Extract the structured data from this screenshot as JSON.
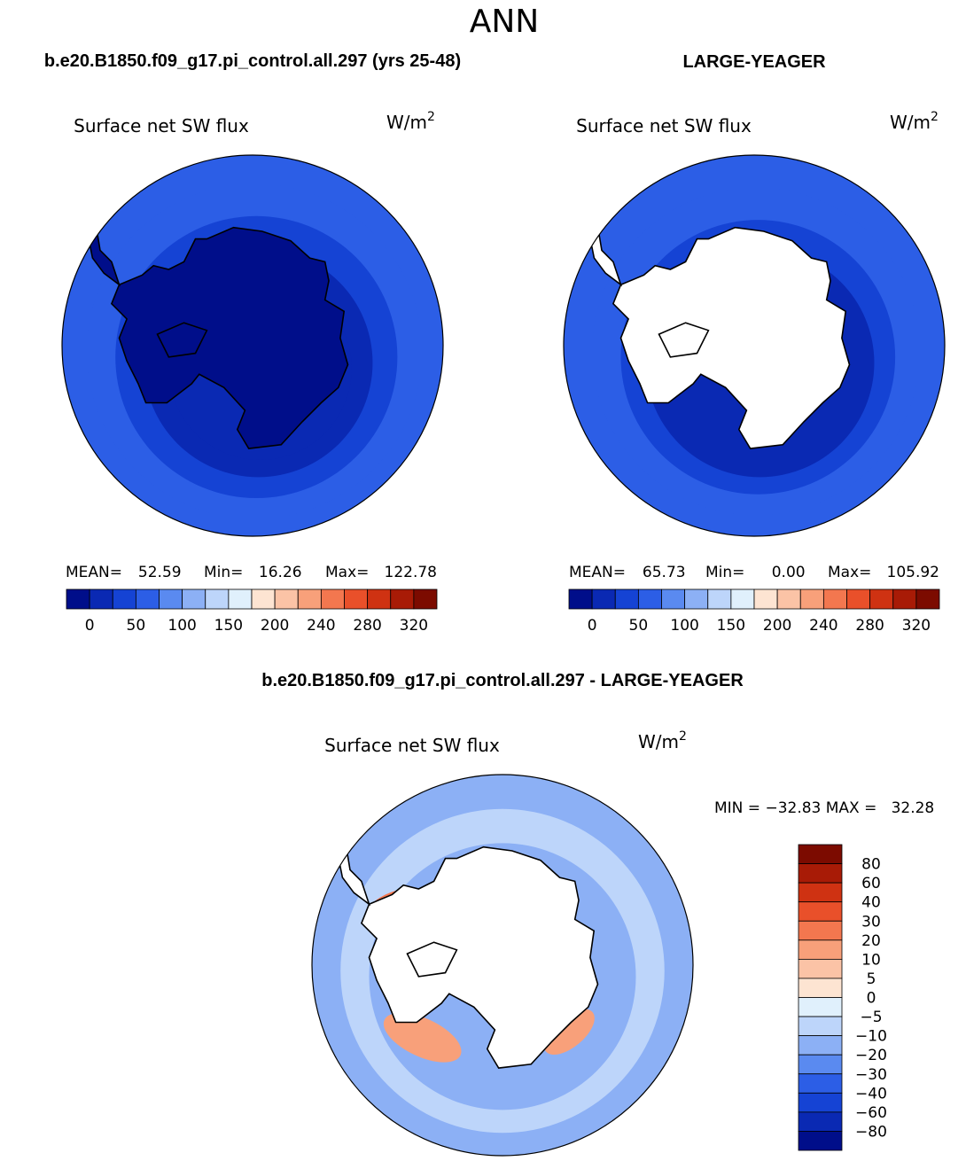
{
  "page_title": "ANN",
  "colors": {
    "land_fill": "#ffffff",
    "coastline": "#000000",
    "text": "#000000"
  },
  "chart_data": [
    {
      "id": "panel-model",
      "type": "heatmap",
      "projection": "south-polar-stereographic",
      "case_title": "b.e20.B1850.f09_g17.pi_control.all.297 (yrs 25-48)",
      "variable": "Surface net SW flux",
      "units_base": "W/m",
      "units_exp": "2",
      "stats": [
        {
          "label": "MEAN=",
          "value": "52.59"
        },
        {
          "label": "Min=",
          "value": "16.26"
        },
        {
          "label": "Max=",
          "value": "122.78"
        }
      ],
      "colorbar": {
        "orientation": "horizontal",
        "tick_labels": [
          "0",
          "50",
          "100",
          "150",
          "200",
          "240",
          "280",
          "320"
        ],
        "colors": [
          "#000e8a",
          "#0a29b3",
          "#1543d4",
          "#2c5ee6",
          "#5a8af0",
          "#8cb0f5",
          "#bdd5fa",
          "#e0f0fc",
          "#fde4d2",
          "#fbc3a6",
          "#f8a07a",
          "#f3774f",
          "#e9502a",
          "#cf3212",
          "#a81b06",
          "#7c0b00"
        ]
      },
      "field_rings": [
        {
          "rho": 1.0,
          "value": 95
        },
        {
          "rho": 0.88,
          "value": 82
        },
        {
          "rho": 0.74,
          "value": 65
        },
        {
          "rho": 0.6,
          "value": 48
        },
        {
          "rho": 0.48,
          "value": 30
        }
      ]
    },
    {
      "id": "panel-obs",
      "type": "heatmap",
      "projection": "south-polar-stereographic",
      "case_title": "LARGE-YEAGER",
      "variable": "Surface net SW flux",
      "units_base": "W/m",
      "units_exp": "2",
      "stats": [
        {
          "label": "MEAN=",
          "value": "65.73"
        },
        {
          "label": "Min=",
          "value": "0.00"
        },
        {
          "label": "Max=",
          "value": "105.92"
        }
      ],
      "colorbar": {
        "orientation": "horizontal",
        "tick_labels": [
          "0",
          "50",
          "100",
          "150",
          "200",
          "240",
          "280",
          "320"
        ],
        "colors": [
          "#000e8a",
          "#0a29b3",
          "#1543d4",
          "#2c5ee6",
          "#5a8af0",
          "#8cb0f5",
          "#bdd5fa",
          "#e0f0fc",
          "#fde4d2",
          "#fbc3a6",
          "#f8a07a",
          "#f3774f",
          "#e9502a",
          "#cf3212",
          "#a81b06",
          "#7c0b00"
        ]
      },
      "field_rings": [
        {
          "rho": 1.0,
          "value": 97
        },
        {
          "rho": 0.86,
          "value": 80
        },
        {
          "rho": 0.72,
          "value": 62
        },
        {
          "rho": 0.6,
          "value": 45
        }
      ]
    },
    {
      "id": "panel-diff",
      "type": "heatmap",
      "projection": "south-polar-stereographic",
      "case_title": "b.e20.B1850.f09_g17.pi_control.all.297 - LARGE-YEAGER",
      "variable": "Surface net SW flux",
      "units_base": "W/m",
      "units_exp": "2",
      "stats_text": "MIN = −32.83 MAX =   32.28",
      "colorbar": {
        "orientation": "vertical",
        "tick_labels": [
          "80",
          "60",
          "40",
          "30",
          "20",
          "10",
          "5",
          "0",
          "−5",
          "−10",
          "−20",
          "−30",
          "−40",
          "−60",
          "−80"
        ],
        "colors": [
          "#7c0b00",
          "#a81b06",
          "#cf3212",
          "#e9502a",
          "#f3774f",
          "#f8a07a",
          "#fbc3a6",
          "#fde4d2",
          "#e0f0fc",
          "#bdd5fa",
          "#8cb0f5",
          "#5a8af0",
          "#2c5ee6",
          "#1543d4",
          "#0a29b3",
          "#000e8a"
        ]
      },
      "field_rings": [
        {
          "rho": 1.0,
          "value": -12
        },
        {
          "rho": 0.85,
          "value": -7
        },
        {
          "rho": 0.7,
          "value": -15
        }
      ],
      "anomalies": [
        {
          "region": "amundsen-sea",
          "value": 25
        },
        {
          "region": "weddell-coast",
          "value": 15
        },
        {
          "region": "ross-sea",
          "value": 12
        }
      ]
    }
  ]
}
